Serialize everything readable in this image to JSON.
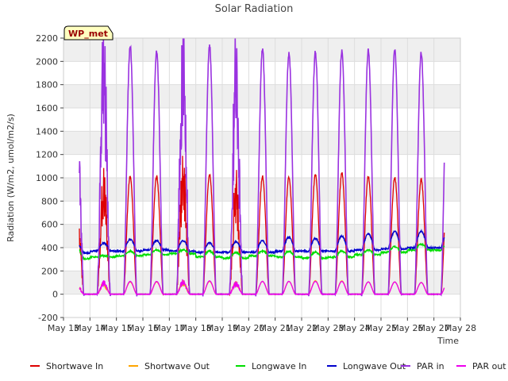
{
  "chart_data": {
    "type": "line",
    "title": "Solar Radiation",
    "xlabel": "Time",
    "ylabel": "Radiation (W/m2, umol/m2/s)",
    "ylim": [
      -200,
      2200
    ],
    "xlim": [
      13,
      28
    ],
    "yticks": [
      -200,
      0,
      200,
      400,
      600,
      800,
      1000,
      1200,
      1400,
      1600,
      1800,
      2000,
      2200
    ],
    "xticks": [
      13,
      14,
      15,
      16,
      17,
      18,
      19,
      20,
      21,
      22,
      23,
      24,
      25,
      26,
      27,
      28
    ],
    "xtick_labels": [
      "May 13",
      "May 14",
      "May 15",
      "May 16",
      "May 17",
      "May 18",
      "May 19",
      "May 20",
      "May 21",
      "May 22",
      "May 23",
      "May 24",
      "May 25",
      "May 26",
      "May 27",
      "May 28"
    ],
    "grid": true,
    "grid_bands": true,
    "legend_position": "bottom",
    "station_label": "WP_met",
    "series": [
      {
        "name": "Shortwave In",
        "color": "#dd0000",
        "daily_peak": [
          700,
          880,
          1010,
          1010,
          960,
          1030,
          850,
          1010,
          1005,
          1030,
          1040,
          1010,
          1000,
          985
        ]
      },
      {
        "name": "Shortwave Out",
        "color": "#ffa500",
        "daily_peak": [
          70,
          80,
          105,
          105,
          95,
          110,
          90,
          110,
          110,
          115,
          115,
          105,
          105,
          100
        ]
      },
      {
        "name": "Longwave In",
        "color": "#00dd00",
        "night": [
          305,
          320,
          330,
          340,
          350,
          320,
          310,
          330,
          320,
          310,
          320,
          340,
          360,
          380
        ],
        "day": [
          390,
          330,
          370,
          380,
          380,
          370,
          360,
          370,
          370,
          360,
          370,
          380,
          410,
          430
        ]
      },
      {
        "name": "Longwave Out",
        "color": "#0000cc",
        "night": [
          355,
          370,
          370,
          380,
          370,
          360,
          360,
          360,
          370,
          370,
          370,
          380,
          390,
          400
        ],
        "day": [
          430,
          440,
          470,
          460,
          460,
          440,
          450,
          460,
          490,
          480,
          500,
          520,
          540,
          540
        ]
      },
      {
        "name": "PAR in",
        "color": "#9a32e0",
        "daily_peak": [
          1440,
          1800,
          2130,
          2080,
          1980,
          2130,
          1750,
          2110,
          2070,
          2080,
          2090,
          2090,
          2090,
          2070
        ]
      },
      {
        "name": "PAR out",
        "color": "#ee00ee",
        "daily_peak": [
          70,
          90,
          110,
          110,
          100,
          115,
          90,
          110,
          110,
          110,
          110,
          105,
          105,
          100
        ]
      }
    ],
    "x_first_day": 13.6,
    "x_last": 27.4
  }
}
